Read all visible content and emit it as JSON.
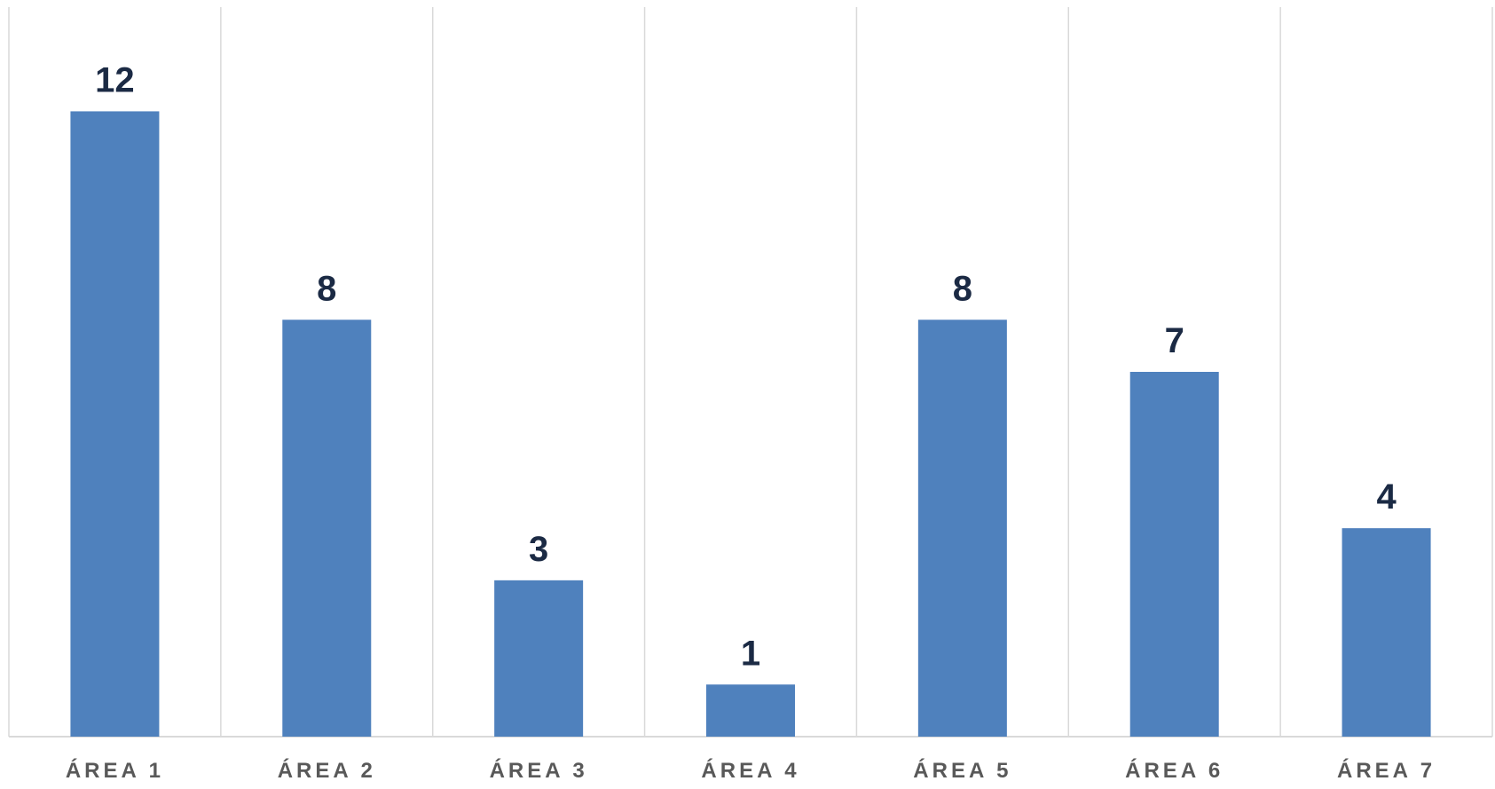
{
  "chart_data": {
    "type": "bar",
    "categories": [
      "ÁREA 1",
      "ÁREA 2",
      "ÁREA 3",
      "ÁREA 4",
      "ÁREA 5",
      "ÁREA 6",
      "ÁREA 7"
    ],
    "values": [
      12,
      8,
      3,
      1,
      8,
      7,
      4
    ],
    "ylim": [
      0,
      14
    ],
    "grid": "vertical category separators",
    "legend": "none",
    "bar_color": "#4f81bd",
    "label_color": "#1b2a44",
    "category_label_color": "#595959",
    "gridline_color": "#d9d9d9"
  }
}
